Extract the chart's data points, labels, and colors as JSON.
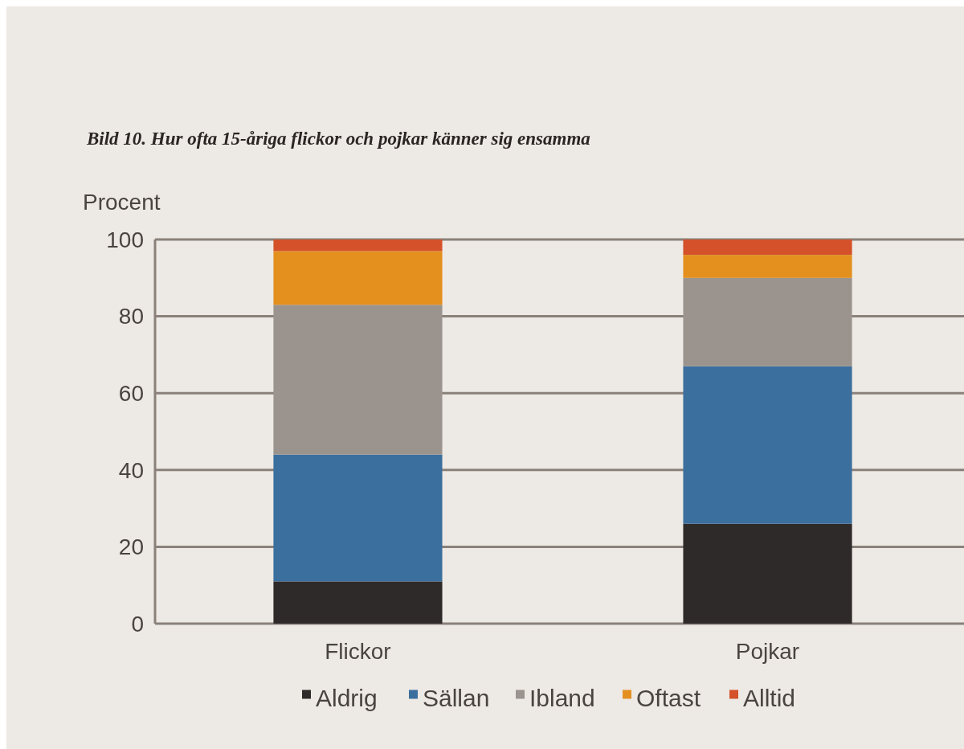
{
  "chart_data": {
    "type": "bar",
    "stacked": true,
    "title": "Bild 10. Hur ofta 15-åriga flickor och pojkar känner sig ensamma",
    "ylabel": "Procent",
    "categories": [
      "Flickor",
      "Pojkar"
    ],
    "series": [
      {
        "name": "Aldrig",
        "color": "#2f2a2a",
        "values": [
          11,
          26
        ]
      },
      {
        "name": "Sällan",
        "color": "#3b6f9e",
        "values": [
          33,
          41
        ]
      },
      {
        "name": "Ibland",
        "color": "#9b948e",
        "values": [
          39,
          23
        ]
      },
      {
        "name": "Oftast",
        "color": "#e3901f",
        "values": [
          14,
          6
        ]
      },
      {
        "name": "Alltid",
        "color": "#d4512a",
        "values": [
          3,
          4
        ]
      }
    ],
    "ylim": [
      0,
      100
    ],
    "yticks": [
      0,
      20,
      40,
      60,
      80,
      100
    ],
    "grid": "y",
    "legend": "bottom"
  }
}
